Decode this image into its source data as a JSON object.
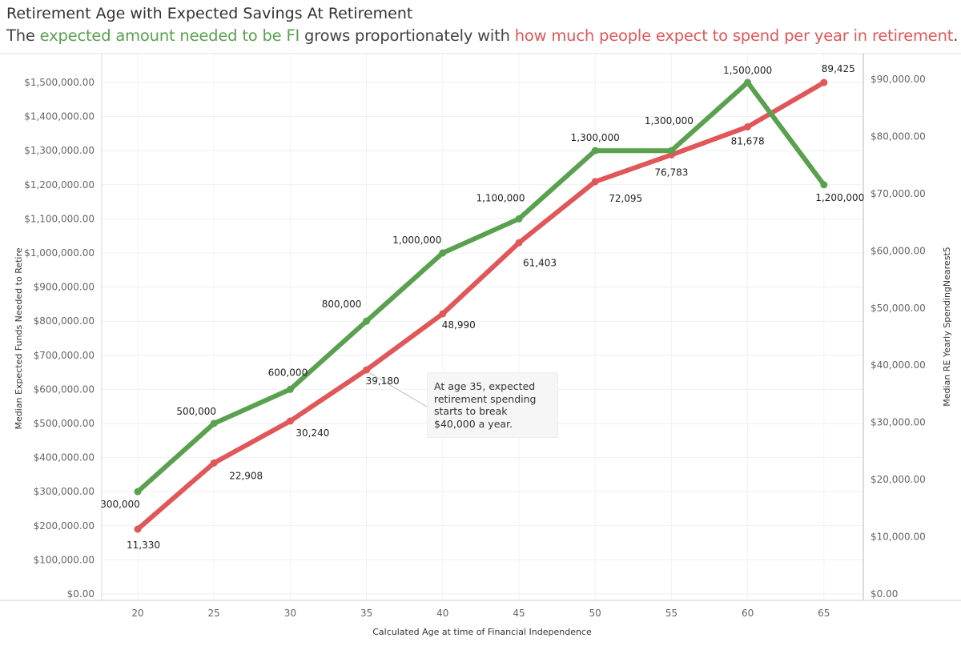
{
  "title": "Retirement Age with Expected Savings At Retirement",
  "subtitle": {
    "part1": "The ",
    "green_text": "expected amount needed to be FI",
    "part2": " grows proportionately with ",
    "red_text": "how much people expect to spend per year in retirement",
    "part3": "."
  },
  "colors": {
    "green": "#59A14F",
    "red": "#E15759"
  },
  "annotation": {
    "text": "At age 35, expected retirement spending starts to break $40,000 a year.",
    "age": 35
  },
  "chart_data": {
    "type": "line",
    "title": "Retirement Age with Expected Savings At Retirement",
    "xlabel": "Calculated Age at time of Financial Independence",
    "ylabel_left": "Median Expected Funds Needed to Retire",
    "ylabel_right": "Median RE Yearly SpendingNearest5",
    "x": [
      20,
      25,
      30,
      35,
      40,
      45,
      50,
      55,
      60,
      65
    ],
    "x_tick_labels": [
      "20",
      "25",
      "30",
      "35",
      "40",
      "45",
      "50",
      "55",
      "60",
      "65"
    ],
    "y_left_range": [
      0,
      1500000
    ],
    "y_left_ticks": [
      0,
      100000,
      200000,
      300000,
      400000,
      500000,
      600000,
      700000,
      800000,
      900000,
      1000000,
      1100000,
      1200000,
      1300000,
      1400000,
      1500000
    ],
    "y_left_tick_labels": [
      "$0.00",
      "$100,000.00",
      "$200,000.00",
      "$300,000.00",
      "$400,000.00",
      "$500,000.00",
      "$600,000.00",
      "$700,000.00",
      "$800,000.00",
      "$900,000.00",
      "$1,000,000.00",
      "$1,100,000.00",
      "$1,200,000.00",
      "$1,300,000.00",
      "$1,400,000.00",
      "$1,500,000.00"
    ],
    "y_right_range": [
      0,
      89425
    ],
    "y_right_ticks": [
      0,
      10000,
      20000,
      30000,
      40000,
      50000,
      60000,
      70000,
      80000,
      90000
    ],
    "y_right_tick_labels": [
      "$0.00",
      "$10,000.00",
      "$20,000.00",
      "$30,000.00",
      "$40,000.00",
      "$50,000.00",
      "$60,000.00",
      "$70,000.00",
      "$80,000.00",
      "$90,000.00"
    ],
    "series": [
      {
        "name": "Median Expected Funds Needed to Retire",
        "axis": "left",
        "color": "#59A14F",
        "values": [
          300000,
          500000,
          600000,
          800000,
          1000000,
          1100000,
          1300000,
          1300000,
          1500000,
          1200000
        ],
        "labels": [
          "300,000",
          "500,000",
          "600,000",
          "800,000",
          "1,000,000",
          "1,100,000",
          "1,300,000",
          "1,300,000",
          "1,500,000",
          "1,200,000"
        ]
      },
      {
        "name": "Median RE Yearly SpendingNearest5",
        "axis": "right",
        "color": "#E15759",
        "values": [
          11330,
          22908,
          30240,
          39180,
          48990,
          61403,
          72095,
          76783,
          81678,
          89425
        ],
        "labels": [
          "11,330",
          "22,908",
          "30,240",
          "39,180",
          "48,990",
          "61,403",
          "72,095",
          "76,783",
          "81,678",
          "89,425"
        ]
      }
    ]
  }
}
